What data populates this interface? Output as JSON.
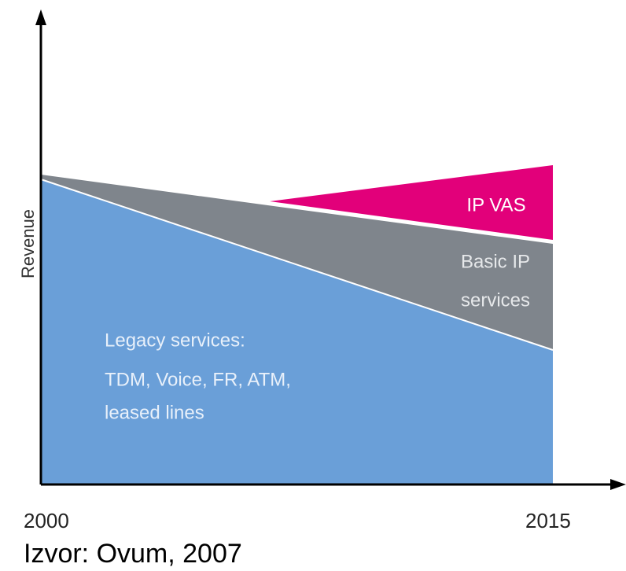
{
  "y_axis_label": "Revenue",
  "x_labels": [
    "2000",
    "2015"
  ],
  "regions": [
    {
      "label": [
        "Legacy services:",
        "TDM, Voice, FR, ATM,",
        "leased lines"
      ]
    },
    {
      "label": [
        "Basic IP",
        "services"
      ]
    },
    {
      "label": [
        "IP VAS"
      ]
    }
  ],
  "source": "Izvor: Ovum, 2007"
}
